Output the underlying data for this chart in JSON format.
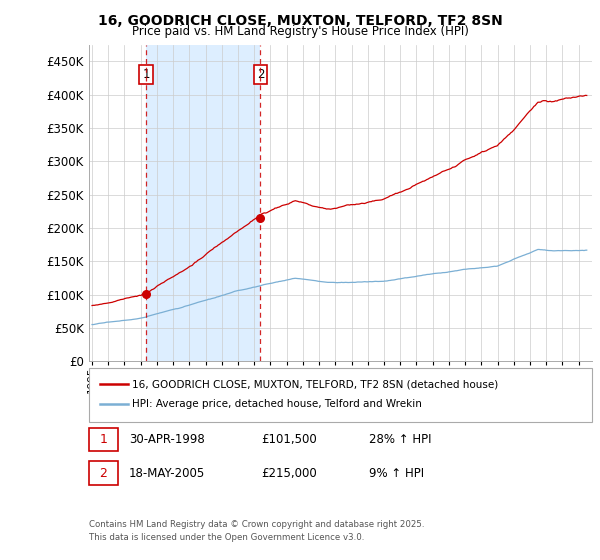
{
  "title_line1": "16, GOODRICH CLOSE, MUXTON, TELFORD, TF2 8SN",
  "title_line2": "Price paid vs. HM Land Registry's House Price Index (HPI)",
  "legend_line1": "16, GOODRICH CLOSE, MUXTON, TELFORD, TF2 8SN (detached house)",
  "legend_line2": "HPI: Average price, detached house, Telford and Wrekin",
  "sale1_date": "30-APR-1998",
  "sale1_price": 101500,
  "sale1_label": "28% ↑ HPI",
  "sale2_date": "18-MAY-2005",
  "sale2_price": 215000,
  "sale2_label": "9% ↑ HPI",
  "footer": "Contains HM Land Registry data © Crown copyright and database right 2025.\nThis data is licensed under the Open Government Licence v3.0.",
  "price_color": "#cc0000",
  "hpi_color": "#7bafd4",
  "shade_color": "#ddeeff",
  "vline_color": "#cc0000",
  "grid_color": "#cccccc",
  "sale1_x": 1998.33,
  "sale2_x": 2005.38,
  "ylim": [
    0,
    475000
  ],
  "yticks": [
    0,
    50000,
    100000,
    150000,
    200000,
    250000,
    300000,
    350000,
    400000,
    450000
  ],
  "xmin": 1994.8,
  "xmax": 2025.8
}
